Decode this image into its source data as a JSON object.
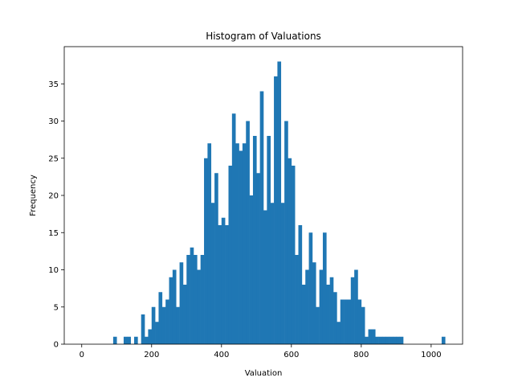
{
  "chart_data": {
    "type": "bar",
    "title": "Histogram of Valuations",
    "xlabel": "Valuation",
    "ylabel": "Frequency",
    "xlim": [
      -50,
      1090
    ],
    "ylim": [
      0,
      40
    ],
    "bin_width": 10,
    "bar_color": "#1f77b4",
    "grid": false,
    "legend": "none",
    "x_ticks": [
      0,
      200,
      400,
      600,
      800,
      1000
    ],
    "y_ticks": [
      0,
      5,
      10,
      15,
      20,
      25,
      30,
      35
    ],
    "bins": [
      [
        90,
        1
      ],
      [
        120,
        1
      ],
      [
        130,
        1
      ],
      [
        150,
        1
      ],
      [
        170,
        4
      ],
      [
        180,
        1
      ],
      [
        190,
        2
      ],
      [
        200,
        5
      ],
      [
        210,
        3
      ],
      [
        220,
        7
      ],
      [
        230,
        5
      ],
      [
        240,
        6
      ],
      [
        250,
        9
      ],
      [
        260,
        10
      ],
      [
        270,
        5
      ],
      [
        280,
        11
      ],
      [
        290,
        8
      ],
      [
        300,
        12
      ],
      [
        310,
        13
      ],
      [
        320,
        12
      ],
      [
        330,
        10
      ],
      [
        340,
        12
      ],
      [
        350,
        25
      ],
      [
        360,
        27
      ],
      [
        370,
        19
      ],
      [
        380,
        23
      ],
      [
        390,
        16
      ],
      [
        400,
        17
      ],
      [
        410,
        16
      ],
      [
        420,
        24
      ],
      [
        430,
        31
      ],
      [
        440,
        27
      ],
      [
        450,
        26
      ],
      [
        460,
        27
      ],
      [
        470,
        30
      ],
      [
        480,
        20
      ],
      [
        490,
        28
      ],
      [
        500,
        23
      ],
      [
        510,
        34
      ],
      [
        520,
        18
      ],
      [
        530,
        28
      ],
      [
        540,
        19
      ],
      [
        550,
        36
      ],
      [
        560,
        38
      ],
      [
        570,
        19
      ],
      [
        580,
        30
      ],
      [
        590,
        25
      ],
      [
        600,
        24
      ],
      [
        610,
        12
      ],
      [
        620,
        16
      ],
      [
        630,
        8
      ],
      [
        640,
        10
      ],
      [
        650,
        15
      ],
      [
        660,
        11
      ],
      [
        670,
        5
      ],
      [
        680,
        10
      ],
      [
        690,
        15
      ],
      [
        700,
        8
      ],
      [
        710,
        9
      ],
      [
        720,
        7
      ],
      [
        730,
        3
      ],
      [
        740,
        6
      ],
      [
        750,
        6
      ],
      [
        760,
        6
      ],
      [
        770,
        9
      ],
      [
        780,
        10
      ],
      [
        790,
        6
      ],
      [
        800,
        5
      ],
      [
        810,
        1
      ],
      [
        820,
        2
      ],
      [
        830,
        2
      ],
      [
        840,
        1
      ],
      [
        850,
        1
      ],
      [
        860,
        1
      ],
      [
        870,
        1
      ],
      [
        880,
        1
      ],
      [
        890,
        1
      ],
      [
        900,
        1
      ],
      [
        910,
        1
      ],
      [
        1030,
        1
      ]
    ]
  }
}
